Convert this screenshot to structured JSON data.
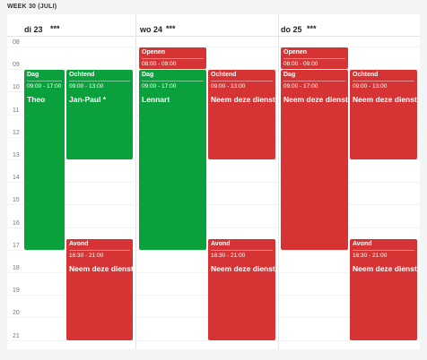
{
  "header": {
    "week": "WEEK 30 (JULI)"
  },
  "hours": [
    "08",
    "09",
    "10",
    "11",
    "12",
    "13",
    "14",
    "15",
    "16",
    "17",
    "18",
    "19",
    "20",
    "21"
  ],
  "days": [
    {
      "label": "di 23",
      "menu": "***",
      "events": [
        {
          "title": "Dag",
          "time": "09:00 - 17:00",
          "name": "Theo",
          "color": "#0aa13c"
        },
        {
          "title": "Ochtend",
          "time": "09:00 - 13:00",
          "name": "Jan-Paul *",
          "color": "#0aa13c"
        },
        {
          "title": "Avond",
          "time": "16:30 - 21:00",
          "name": "Neem deze dienst",
          "color": "#d63434"
        }
      ]
    },
    {
      "label": "wo 24",
      "menu": "***",
      "events": [
        {
          "title": "Openen",
          "time": "08:00 - 09:00",
          "color": "#d63434"
        },
        {
          "title": "Dag",
          "time": "09:00 - 17:00",
          "name": "Lennart",
          "color": "#0aa13c"
        },
        {
          "title": "Ochtend",
          "time": "09:00 - 13:00",
          "name": "Neem deze dienst",
          "color": "#d63434"
        },
        {
          "title": "Avond",
          "time": "16:30 - 21:00",
          "name": "Neem deze dienst",
          "color": "#d63434"
        }
      ]
    },
    {
      "label": "do 25",
      "menu": "***",
      "events": [
        {
          "title": "Openen",
          "time": "08:00 - 09:00",
          "color": "#d63434"
        },
        {
          "title": "Dag",
          "time": "09:00 - 17:00",
          "name": "Neem deze dienst",
          "color": "#d63434"
        },
        {
          "title": "Ochtend",
          "time": "09:00 - 13:00",
          "name": "Neem deze dienst",
          "color": "#d63434"
        },
        {
          "title": "Avond",
          "time": "16:30 - 21:00",
          "name": "Neem deze dienst",
          "color": "#d63434"
        }
      ]
    }
  ]
}
